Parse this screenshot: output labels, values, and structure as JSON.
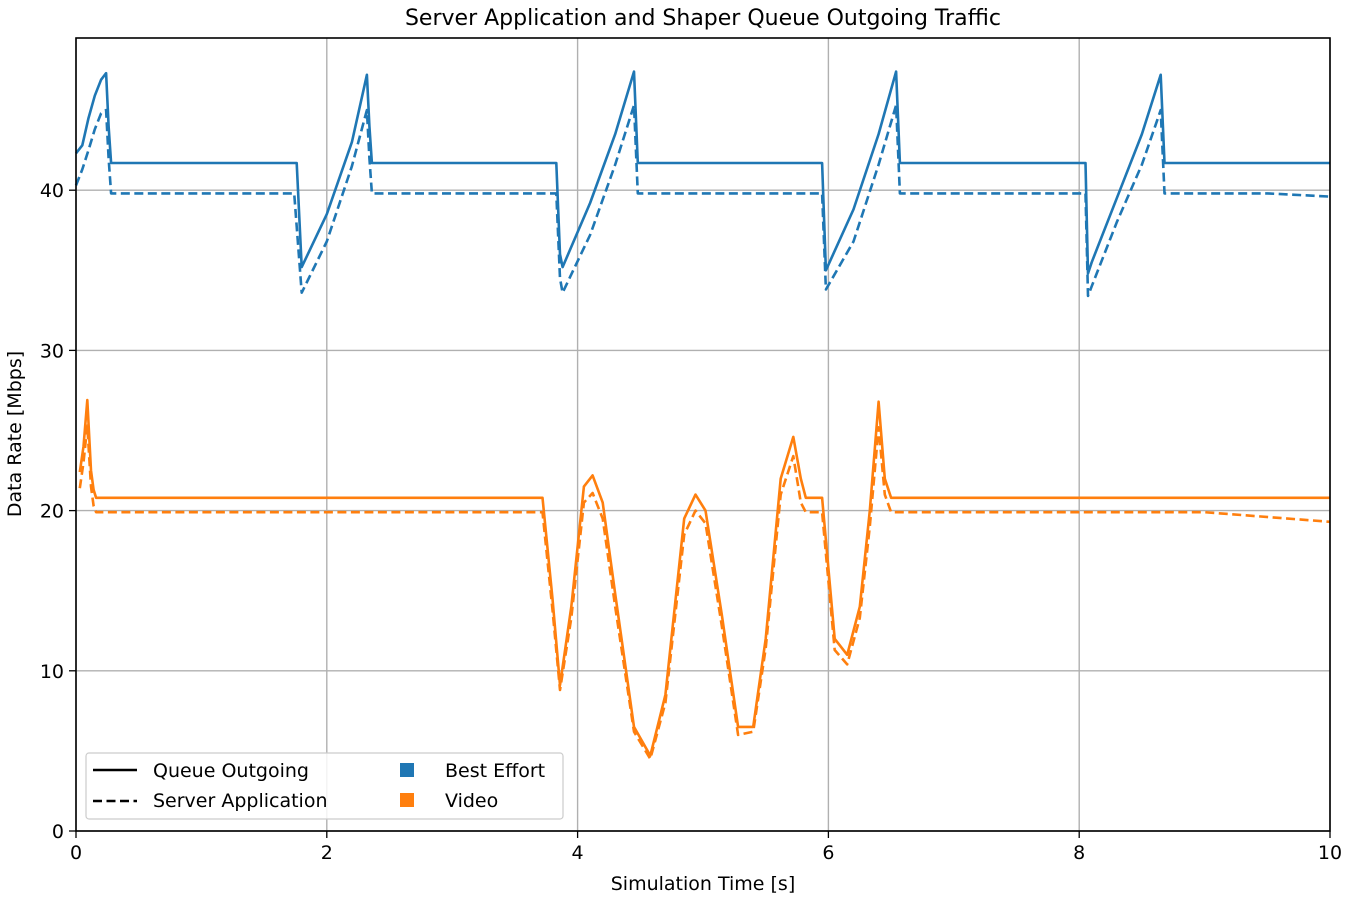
{
  "chart_data": {
    "type": "line",
    "title": "Server Application and Shaper Queue Outgoing Traffic",
    "xlabel": "Simulation Time [s]",
    "ylabel": "Data Rate [Mbps]",
    "xlim": [
      0,
      10
    ],
    "ylim": [
      0,
      49.5
    ],
    "xticks": [
      0,
      2,
      4,
      6,
      8,
      10
    ],
    "yticks": [
      0,
      10,
      20,
      30,
      40
    ],
    "grid": true,
    "legend_position": "lower-left",
    "legend": {
      "styles": [
        {
          "label": "Queue Outgoing",
          "dash": "solid"
        },
        {
          "label": "Server Application",
          "dash": "dashed"
        }
      ],
      "classes": [
        {
          "label": "Best Effort",
          "color": "#1f77b4"
        },
        {
          "label": "Video",
          "color": "#ff7f0e"
        }
      ]
    },
    "series": [
      {
        "traffic_class": "Best Effort",
        "line_style": "solid",
        "color": "#1f77b4",
        "x": [
          0,
          0.05,
          0.1,
          0.15,
          0.2,
          0.24,
          0.26,
          0.28,
          1.0,
          1.5,
          1.76,
          1.8,
          2.0,
          2.2,
          2.32,
          2.34,
          2.36,
          3.0,
          3.83,
          3.86,
          3.88,
          4.1,
          4.3,
          4.45,
          4.48,
          5.0,
          5.5,
          5.95,
          5.98,
          6.2,
          6.4,
          6.54,
          6.57,
          7.5,
          8.05,
          8.07,
          8.1,
          8.3,
          8.5,
          8.65,
          8.68,
          9.5,
          10.0
        ],
        "y": [
          42.3,
          42.8,
          44.5,
          45.9,
          46.9,
          47.3,
          44.0,
          41.7,
          41.7,
          41.7,
          41.7,
          35.2,
          38.5,
          43.0,
          47.2,
          44.0,
          41.7,
          41.7,
          41.7,
          36.0,
          35.2,
          39.2,
          43.5,
          47.4,
          41.7,
          41.7,
          41.7,
          41.7,
          35.0,
          38.8,
          43.5,
          47.4,
          41.7,
          41.7,
          41.7,
          34.8,
          35.5,
          39.5,
          43.5,
          47.2,
          41.7,
          41.7,
          41.7
        ]
      },
      {
        "traffic_class": "Best Effort",
        "line_style": "dashed",
        "color": "#1f77b4",
        "x": [
          0,
          0.05,
          0.1,
          0.15,
          0.2,
          0.24,
          0.26,
          0.28,
          1.0,
          1.5,
          1.74,
          1.8,
          2.0,
          2.2,
          2.32,
          2.34,
          2.36,
          3.0,
          3.83,
          3.86,
          3.88,
          4.1,
          4.3,
          4.45,
          4.48,
          5.0,
          5.5,
          5.95,
          5.98,
          6.2,
          6.4,
          6.54,
          6.57,
          7.5,
          8.05,
          8.07,
          8.1,
          8.3,
          8.5,
          8.65,
          8.68,
          9.5,
          10.0
        ],
        "y": [
          40.3,
          41.3,
          42.5,
          43.8,
          44.8,
          45.0,
          42.0,
          39.8,
          39.8,
          39.8,
          39.8,
          33.6,
          36.8,
          41.5,
          45.0,
          42.0,
          39.8,
          39.8,
          39.8,
          34.5,
          33.6,
          37.2,
          41.6,
          45.3,
          39.8,
          39.8,
          39.8,
          39.8,
          33.8,
          36.8,
          41.6,
          45.3,
          39.8,
          39.8,
          39.8,
          33.4,
          34.0,
          38.0,
          41.6,
          45.0,
          39.8,
          39.8,
          39.6
        ]
      },
      {
        "traffic_class": "Video",
        "line_style": "solid",
        "color": "#ff7f0e",
        "x": [
          0.03,
          0.06,
          0.09,
          0.12,
          0.14,
          0.16,
          0.2,
          1.0,
          2.0,
          3.0,
          3.72,
          3.8,
          3.86,
          3.95,
          4.05,
          4.12,
          4.2,
          4.3,
          4.45,
          4.58,
          4.7,
          4.85,
          4.94,
          5.02,
          5.15,
          5.28,
          5.4,
          5.5,
          5.62,
          5.72,
          5.78,
          5.82,
          5.95,
          6.05,
          6.15,
          6.25,
          6.33,
          6.4,
          6.45,
          6.5,
          7.0,
          8.0,
          9.0,
          10.0
        ],
        "y": [
          22.4,
          24.0,
          26.9,
          22.5,
          21.3,
          20.8,
          20.8,
          20.8,
          20.8,
          20.8,
          20.8,
          14.5,
          9.1,
          14.0,
          21.5,
          22.2,
          20.5,
          14.8,
          6.5,
          4.7,
          8.5,
          19.5,
          21.0,
          20.0,
          13.5,
          6.5,
          6.5,
          12.0,
          22.0,
          24.6,
          22.0,
          20.8,
          20.8,
          12.0,
          11.0,
          14.0,
          20.0,
          26.8,
          22.0,
          20.8,
          20.8,
          20.8,
          20.8,
          20.8
        ]
      },
      {
        "traffic_class": "Video",
        "line_style": "dashed",
        "color": "#ff7f0e",
        "x": [
          0.03,
          0.06,
          0.09,
          0.12,
          0.14,
          0.16,
          0.2,
          1.0,
          2.0,
          3.0,
          3.72,
          3.8,
          3.86,
          3.95,
          4.05,
          4.12,
          4.2,
          4.3,
          4.45,
          4.58,
          4.7,
          4.85,
          4.94,
          5.02,
          5.15,
          5.28,
          5.4,
          5.5,
          5.62,
          5.72,
          5.78,
          5.82,
          5.95,
          6.05,
          6.15,
          6.25,
          6.33,
          6.4,
          6.45,
          6.5,
          7.0,
          8.0,
          9.0,
          10.0
        ],
        "y": [
          21.4,
          23.0,
          25.3,
          21.5,
          20.3,
          19.9,
          19.9,
          19.9,
          19.9,
          19.9,
          19.9,
          13.8,
          8.8,
          13.3,
          20.5,
          21.1,
          19.5,
          14.0,
          6.2,
          4.5,
          8.0,
          18.5,
          20.0,
          19.2,
          12.8,
          6.0,
          6.2,
          11.4,
          21.0,
          23.4,
          20.5,
          19.9,
          19.9,
          11.3,
          10.4,
          13.3,
          19.0,
          25.2,
          21.0,
          19.9,
          19.9,
          19.9,
          19.9,
          19.3
        ]
      }
    ]
  }
}
